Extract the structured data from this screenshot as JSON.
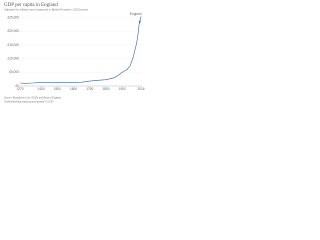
{
  "chart_data": {
    "type": "line",
    "title": "GDP per capita in England",
    "subtitle": "Adjusted for inflation and measured in British Pounds in 2013 prices",
    "source": "Source: Broadberry et al. (2015) and Bank of England",
    "footer": "OurWorldInData.org/economic-growth • CC BY",
    "x": [
      1270,
      1300,
      1350,
      1400,
      1450,
      1500,
      1550,
      1600,
      1650,
      1700,
      1750,
      1800,
      1850,
      1870,
      1900,
      1913,
      1930,
      1950,
      1970,
      1990,
      2000,
      2007,
      2009,
      2016
    ],
    "series": [
      {
        "name": "England",
        "color": "#3360a9",
        "values": [
          1100,
          1000,
          1100,
          1300,
          1300,
          1300,
          1200,
          1300,
          1400,
          1800,
          2100,
          2300,
          3000,
          3700,
          5000,
          5500,
          6000,
          7500,
          11000,
          16000,
          20000,
          24000,
          23000,
          25500
        ]
      }
    ],
    "xlim": [
      1270,
      2016
    ],
    "xticks": [
      1270,
      1400,
      1500,
      1600,
      1700,
      1800,
      1900,
      2016
    ],
    "ylim": [
      0,
      26000
    ],
    "yticks": [
      {
        "value": 0,
        "label": "£0"
      },
      {
        "value": 5000,
        "label": "£5,000"
      },
      {
        "value": 10000,
        "label": "£10,000"
      },
      {
        "value": 15000,
        "label": "£15,000"
      },
      {
        "value": 20000,
        "label": "£20,000"
      },
      {
        "value": 25000,
        "label": "£25,000"
      }
    ],
    "grid": true
  }
}
